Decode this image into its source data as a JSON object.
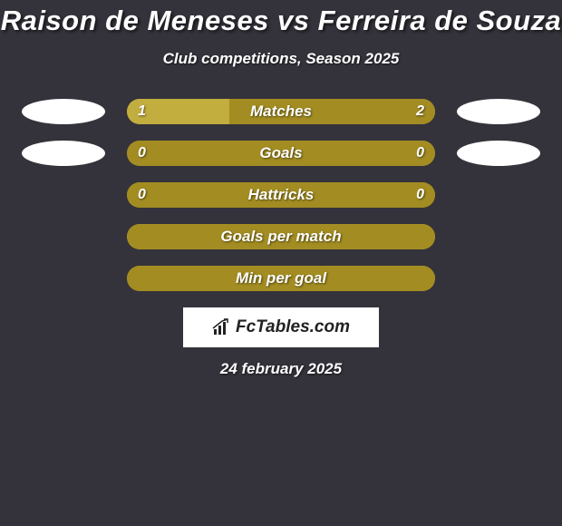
{
  "title": "Raison de Meneses vs Ferreira de Souza",
  "subtitle": "Club competitions, Season 2025",
  "date": "24 february 2025",
  "logo_text": "FcTables.com",
  "colors": {
    "background": "#34333b",
    "bar_base": "#a38d22",
    "bar_highlight": "#c2ad3f",
    "avatar": "#ffffff",
    "logo_bg": "#ffffff",
    "text": "#ffffff"
  },
  "avatars": {
    "left_present_rows": [
      0,
      1
    ],
    "right_present_rows": [
      0,
      1
    ]
  },
  "stats": [
    {
      "label": "Matches",
      "left_value": "1",
      "right_value": "2",
      "left_pct": 33.3,
      "right_pct": 66.7,
      "left_color": "#c2ad3f",
      "right_color": "#a38d22"
    },
    {
      "label": "Goals",
      "left_value": "0",
      "right_value": "0",
      "left_pct": 0,
      "right_pct": 100,
      "left_color": "#a38d22",
      "right_color": "#a38d22"
    },
    {
      "label": "Hattricks",
      "left_value": "0",
      "right_value": "0",
      "left_pct": 0,
      "right_pct": 100,
      "left_color": "#a38d22",
      "right_color": "#a38d22"
    },
    {
      "label": "Goals per match",
      "left_value": "",
      "right_value": "",
      "left_pct": 0,
      "right_pct": 100,
      "left_color": "#a38d22",
      "right_color": "#a38d22"
    },
    {
      "label": "Min per goal",
      "left_value": "",
      "right_value": "",
      "left_pct": 0,
      "right_pct": 100,
      "left_color": "#a38d22",
      "right_color": "#a38d22"
    }
  ]
}
